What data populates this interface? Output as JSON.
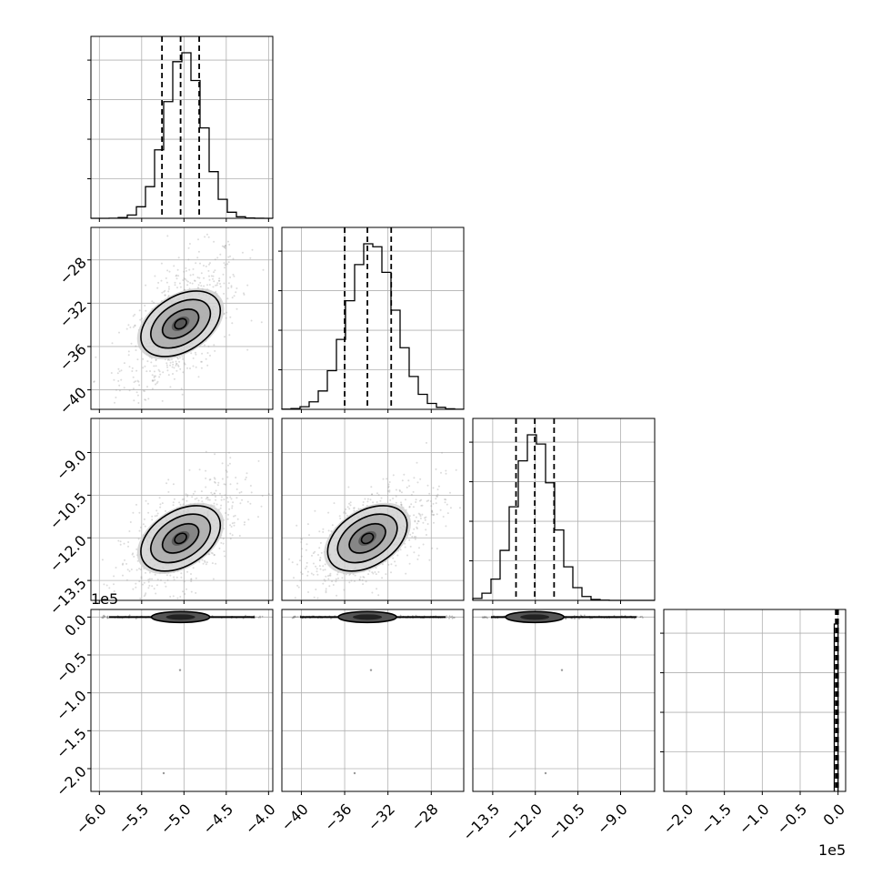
{
  "chart_data": {
    "type": "corner",
    "n_params": 4,
    "axis_ticks": [
      {
        "param": 1,
        "ticks": [
          -6.0,
          -5.5,
          -5.0,
          -4.5,
          -4.0
        ],
        "labels": [
          "−6.0",
          "−5.5",
          "−5.0",
          "−4.5",
          "−4.0"
        ],
        "range": [
          -6.1,
          -3.95
        ]
      },
      {
        "param": 2,
        "ticks": [
          -40,
          -36,
          -32,
          -28
        ],
        "labels": [
          "−40",
          "−36",
          "−32",
          "−28"
        ],
        "range": [
          -41.8,
          -25.0
        ]
      },
      {
        "param": 3,
        "ticks": [
          -13.5,
          -12.0,
          -10.5,
          -9.0
        ],
        "labels": [
          "−13.5",
          "−12.0",
          "−10.5",
          "−9.0"
        ],
        "range": [
          -14.2,
          -7.8
        ]
      },
      {
        "param": 4,
        "ticks": [
          -2.0,
          -1.5,
          -1.0,
          -0.5,
          0.0
        ],
        "labels": [
          "−2.0",
          "−1.5",
          "−1.0",
          "−0.5",
          "0.0"
        ],
        "range": [
          -2.3,
          0.1
        ],
        "offset_label": "1e5"
      }
    ],
    "marginal_quantiles": [
      {
        "param": 1,
        "q16": -5.26,
        "q50": -5.04,
        "q84": -4.82,
        "peak": -5.0
      },
      {
        "param": 2,
        "q16": -36.0,
        "q50": -33.9,
        "q84": -31.7,
        "peak": -33.5
      },
      {
        "param": 3,
        "q16": -12.68,
        "q50": -12.02,
        "q84": -11.34,
        "peak": -12.04
      },
      {
        "param": 4,
        "q16": -0.03,
        "q50": -0.01,
        "q84": 0.0,
        "peak": -0.01
      }
    ],
    "grid": true,
    "contour_levels": 3,
    "title": "",
    "xlabel": "",
    "ylabel": ""
  }
}
